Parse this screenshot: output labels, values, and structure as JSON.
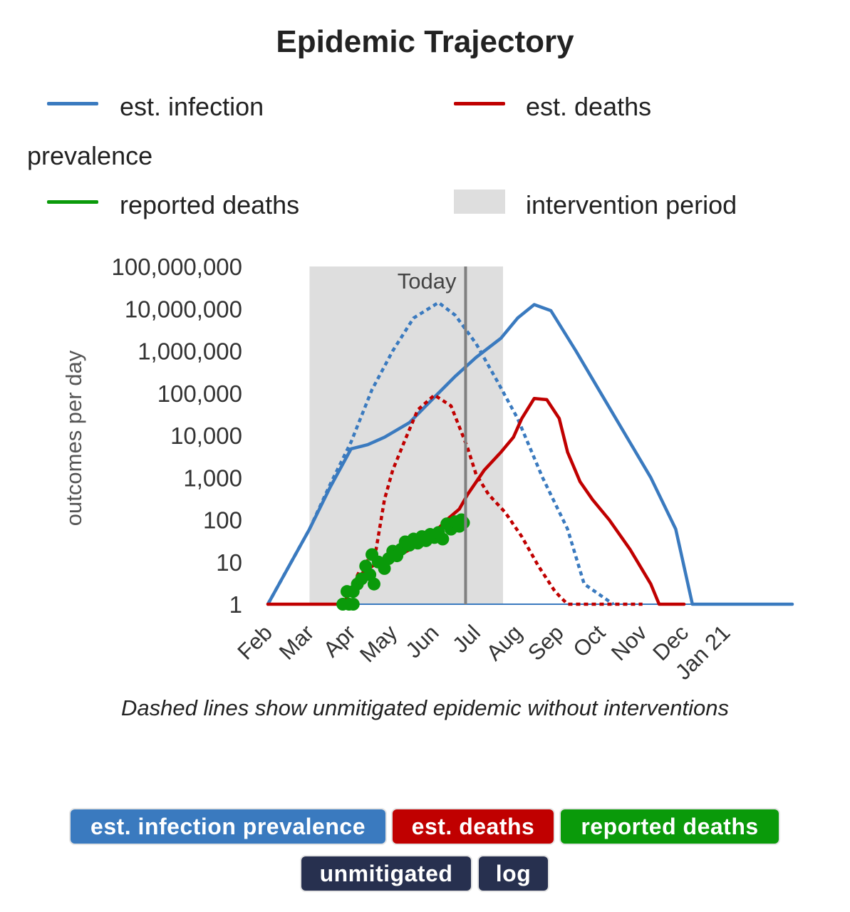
{
  "title": "Epidemic Trajectory",
  "legend": {
    "infection_line1": "est. infection",
    "infection_line2": "prevalence",
    "deaths": "est. deaths",
    "reported": "reported deaths",
    "intervention": "intervention period"
  },
  "caption": "Dashed lines show unmitigated epidemic without interventions",
  "buttons": {
    "infection": "est. infection prevalence",
    "deaths": "est. deaths",
    "reported": "reported deaths",
    "unmitigated": "unmitigated",
    "log": "log"
  },
  "colors": {
    "infection": "#3a7abf",
    "deaths": "#c00000",
    "reported": "#0a9a0a",
    "intervention": "#dedede",
    "today": "#808080",
    "dark_button": "#27304f"
  },
  "chart_data": {
    "type": "line",
    "title": "Epidemic Trajectory",
    "ylabel": "outcomes per day",
    "xlabel": "",
    "yscale": "log",
    "ylim": [
      1,
      100000000
    ],
    "y_ticks": [
      "1",
      "10",
      "100",
      "1,000",
      "10,000",
      "100,000",
      "1,000,000",
      "10,000,000",
      "100,000,000"
    ],
    "x_unit": "months since Feb 1",
    "xlim": [
      0,
      12.6
    ],
    "x_ticks": [
      {
        "label": "Feb",
        "x": 0
      },
      {
        "label": "Mar",
        "x": 1
      },
      {
        "label": "Apr",
        "x": 2
      },
      {
        "label": "May",
        "x": 3
      },
      {
        "label": "Jun",
        "x": 4
      },
      {
        "label": "Jul",
        "x": 5
      },
      {
        "label": "Aug",
        "x": 6
      },
      {
        "label": "Sep",
        "x": 7
      },
      {
        "label": "Oct",
        "x": 8
      },
      {
        "label": "Nov",
        "x": 9
      },
      {
        "label": "Dec",
        "x": 10
      },
      {
        "label": "Jan 21",
        "x": 11
      }
    ],
    "intervention_period": [
      1.0,
      5.65
    ],
    "today": {
      "label": "Today",
      "x": 4.75
    },
    "series": [
      {
        "name": "est. infection prevalence",
        "color": "infection",
        "dashed": false,
        "points": [
          [
            0,
            1
          ],
          [
            1.0,
            60
          ],
          [
            1.5,
            600
          ],
          [
            2.0,
            4800
          ],
          [
            2.4,
            6000
          ],
          [
            2.8,
            9000
          ],
          [
            3.4,
            20000
          ],
          [
            4.0,
            80000
          ],
          [
            4.5,
            250000
          ],
          [
            5.0,
            700000
          ],
          [
            5.6,
            2000000
          ],
          [
            6.0,
            6000000
          ],
          [
            6.4,
            12500000
          ],
          [
            6.8,
            9000000
          ],
          [
            7.4,
            1000000
          ],
          [
            8.0,
            100000
          ],
          [
            8.6,
            10000
          ],
          [
            9.2,
            1000
          ],
          [
            9.8,
            60
          ],
          [
            10.2,
            1
          ],
          [
            12.6,
            1
          ]
        ]
      },
      {
        "name": "est. infection prevalence (unmitigated)",
        "color": "infection",
        "dashed": true,
        "points": [
          [
            0,
            1
          ],
          [
            1.0,
            60
          ],
          [
            1.5,
            700
          ],
          [
            2.0,
            7000
          ],
          [
            2.5,
            120000
          ],
          [
            3.0,
            1000000
          ],
          [
            3.5,
            6000000
          ],
          [
            4.1,
            14000000
          ],
          [
            4.5,
            7000000
          ],
          [
            5.0,
            1500000
          ],
          [
            5.5,
            200000
          ],
          [
            6.0,
            25000
          ],
          [
            6.6,
            1000
          ],
          [
            7.2,
            60
          ],
          [
            7.6,
            3
          ],
          [
            8.3,
            1
          ]
        ]
      },
      {
        "name": "est. deaths",
        "color": "deaths",
        "dashed": false,
        "points": [
          [
            0,
            1
          ],
          [
            1.8,
            1
          ],
          [
            2.3,
            6
          ],
          [
            2.6,
            9
          ],
          [
            3.0,
            12
          ],
          [
            3.5,
            22
          ],
          [
            4.0,
            50
          ],
          [
            4.3,
            100
          ],
          [
            4.6,
            180
          ],
          [
            4.8,
            400
          ],
          [
            5.2,
            1500
          ],
          [
            5.6,
            4000
          ],
          [
            5.9,
            9000
          ],
          [
            6.1,
            25000
          ],
          [
            6.4,
            75000
          ],
          [
            6.7,
            70000
          ],
          [
            7.0,
            25000
          ],
          [
            7.2,
            4000
          ],
          [
            7.5,
            800
          ],
          [
            7.8,
            300
          ],
          [
            8.2,
            100
          ],
          [
            8.7,
            20
          ],
          [
            9.2,
            3
          ],
          [
            9.4,
            1
          ],
          [
            10.0,
            1
          ]
        ]
      },
      {
        "name": "est. deaths (unmitigated)",
        "color": "deaths",
        "dashed": true,
        "points": [
          [
            1.8,
            1
          ],
          [
            2.2,
            6
          ],
          [
            2.6,
            20
          ],
          [
            2.8,
            300
          ],
          [
            3.0,
            1500
          ],
          [
            3.3,
            8000
          ],
          [
            3.6,
            40000
          ],
          [
            4.0,
            90000
          ],
          [
            4.4,
            50000
          ],
          [
            4.8,
            5000
          ],
          [
            5.0,
            1200
          ],
          [
            5.3,
            400
          ],
          [
            5.7,
            150
          ],
          [
            6.1,
            40
          ],
          [
            6.5,
            8
          ],
          [
            6.9,
            2
          ],
          [
            7.2,
            1
          ],
          [
            9.0,
            1
          ]
        ]
      },
      {
        "name": "reported deaths",
        "color": "reported",
        "type": "scatter",
        "points": [
          [
            1.8,
            1
          ],
          [
            1.95,
            1
          ],
          [
            2.05,
            1
          ],
          [
            1.9,
            2
          ],
          [
            2.05,
            2
          ],
          [
            2.15,
            3
          ],
          [
            2.25,
            4
          ],
          [
            2.35,
            8
          ],
          [
            2.45,
            5
          ],
          [
            2.55,
            3
          ],
          [
            2.5,
            15
          ],
          [
            2.65,
            10
          ],
          [
            2.8,
            7
          ],
          [
            2.9,
            12
          ],
          [
            3.0,
            18
          ],
          [
            3.1,
            14
          ],
          [
            3.2,
            20
          ],
          [
            3.3,
            30
          ],
          [
            3.4,
            25
          ],
          [
            3.5,
            35
          ],
          [
            3.6,
            28
          ],
          [
            3.7,
            40
          ],
          [
            3.8,
            32
          ],
          [
            3.9,
            45
          ],
          [
            4.0,
            38
          ],
          [
            4.1,
            50
          ],
          [
            4.2,
            35
          ],
          [
            4.3,
            80
          ],
          [
            4.4,
            60
          ],
          [
            4.5,
            90
          ],
          [
            4.6,
            70
          ],
          [
            4.65,
            100
          ],
          [
            4.7,
            85
          ]
        ]
      }
    ]
  }
}
